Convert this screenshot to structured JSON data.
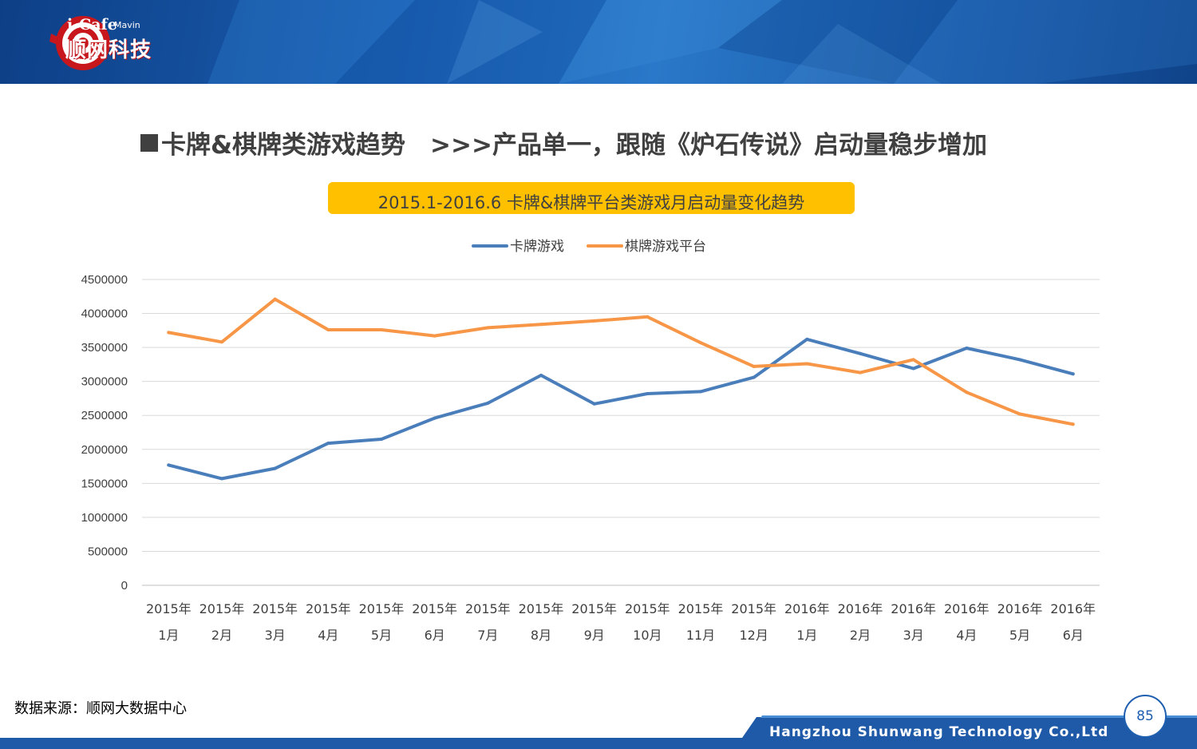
{
  "brand": {
    "logo_text": "i-Cafe",
    "logo_sub": "Mavin",
    "logo_cn": "顺网科技"
  },
  "slide": {
    "title": "卡牌&棋牌类游戏趋势　>>>产品单一，跟随《炉石传说》启动量稳步增加",
    "source": "数据来源：顺网大数据中心",
    "company": "Hangzhou Shunwang Technology Co.,Ltd",
    "page_number": "85"
  },
  "colors": {
    "header_blue": "#1b5fb2",
    "title_box": "#ffc000",
    "series_blue": "#4a7ebb",
    "series_orange": "#f79646",
    "text_gray": "#404040"
  },
  "chart_data": {
    "type": "line",
    "title": "2015.1-2016.6 卡牌&棋牌平台类游戏月启动量变化趋势",
    "categories": [
      [
        "2015年",
        "1月"
      ],
      [
        "2015年",
        "2月"
      ],
      [
        "2015年",
        "3月"
      ],
      [
        "2015年",
        "4月"
      ],
      [
        "2015年",
        "5月"
      ],
      [
        "2015年",
        "6月"
      ],
      [
        "2015年",
        "7月"
      ],
      [
        "2015年",
        "8月"
      ],
      [
        "2015年",
        "9月"
      ],
      [
        "2015年",
        "10月"
      ],
      [
        "2015年",
        "11月"
      ],
      [
        "2015年",
        "12月"
      ],
      [
        "2016年",
        "1月"
      ],
      [
        "2016年",
        "2月"
      ],
      [
        "2016年",
        "3月"
      ],
      [
        "2016年",
        "4月"
      ],
      [
        "2016年",
        "5月"
      ],
      [
        "2016年",
        "6月"
      ]
    ],
    "series": [
      {
        "name": "卡牌游戏",
        "color": "#4a7ebb",
        "values": [
          1770000,
          1570000,
          1720000,
          2090000,
          2150000,
          2460000,
          2680000,
          3090000,
          2670000,
          2820000,
          2850000,
          3060000,
          3620000,
          3410000,
          3190000,
          3490000,
          3320000,
          3110000
        ]
      },
      {
        "name": "棋牌游戏平台",
        "color": "#f79646",
        "values": [
          3720000,
          3580000,
          4210000,
          3760000,
          3760000,
          3670000,
          3790000,
          3840000,
          3890000,
          3950000,
          3570000,
          3220000,
          3260000,
          3130000,
          3320000,
          2840000,
          2520000,
          2370000
        ]
      }
    ],
    "ylim": [
      0,
      4500000
    ],
    "yticks": [
      "0",
      "500000",
      "1000000",
      "1500000",
      "2000000",
      "2500000",
      "3000000",
      "3500000",
      "4000000",
      "4500000"
    ],
    "grid": true,
    "legend": "top-center"
  }
}
